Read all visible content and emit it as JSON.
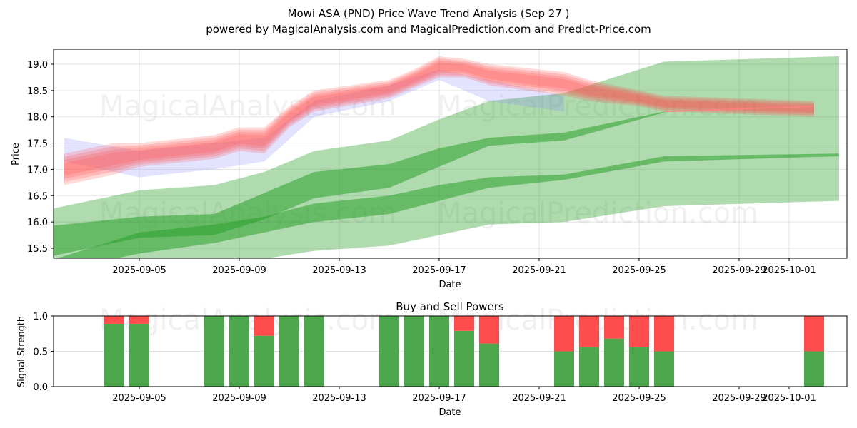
{
  "header": {
    "title": "Mowi ASA (PND) Price Wave Trend Analysis (Sep 27 )",
    "subtitle": "powered by MagicalAnalysis.com and MagicalPrediction.com and Predict-Price.com"
  },
  "watermarks": [
    "MagicalAnalysis.com",
    "MagicalPrediction.com"
  ],
  "colors": {
    "buy": "#4ca64c",
    "sell": "#ff4c4c",
    "band_green": "#2ca02c",
    "band_red": "#ff4d4d",
    "band_blue": "#8080ff"
  },
  "chart_data": [
    {
      "type": "area",
      "title": "",
      "xlabel": "Date",
      "ylabel": "Price",
      "ylim": [
        15.3,
        19.3
      ],
      "yticks": [
        "15.5",
        "16.0",
        "16.5",
        "17.0",
        "17.5",
        "18.0",
        "18.5",
        "19.0"
      ],
      "ytick_values": [
        15.5,
        16.0,
        16.5,
        17.0,
        17.5,
        18.0,
        18.5,
        19.0
      ],
      "xlim": [
        "2025-09-01",
        "2025-10-03"
      ],
      "xticks": [
        "2025-09-05",
        "2025-09-09",
        "2025-09-13",
        "2025-09-17",
        "2025-09-21",
        "2025-09-25",
        "2025-09-29",
        "2025-10-01"
      ],
      "grid": true,
      "red_band": {
        "x": [
          "2025-09-02",
          "2025-09-04",
          "2025-09-05",
          "2025-09-08",
          "2025-09-09",
          "2025-09-10",
          "2025-09-11",
          "2025-09-12",
          "2025-09-15",
          "2025-09-16",
          "2025-09-17",
          "2025-09-18",
          "2025-09-19",
          "2025-09-22",
          "2025-09-23",
          "2025-09-24",
          "2025-09-25",
          "2025-09-26",
          "2025-10-02"
        ],
        "upper": [
          17.3,
          17.5,
          17.5,
          17.65,
          17.8,
          17.8,
          18.2,
          18.5,
          18.7,
          18.9,
          19.15,
          19.1,
          19.0,
          18.85,
          18.7,
          18.6,
          18.5,
          18.4,
          18.3
        ],
        "lower": [
          16.7,
          16.9,
          17.05,
          17.2,
          17.35,
          17.3,
          17.8,
          18.1,
          18.35,
          18.55,
          18.75,
          18.75,
          18.6,
          18.4,
          18.3,
          18.25,
          18.2,
          18.1,
          18.0
        ]
      },
      "blue_band": {
        "x": [
          "2025-09-02",
          "2025-09-05",
          "2025-09-08",
          "2025-09-10",
          "2025-09-12",
          "2025-09-15",
          "2025-09-17",
          "2025-09-19",
          "2025-09-22"
        ],
        "upper": [
          17.6,
          17.35,
          17.5,
          17.6,
          18.3,
          18.6,
          18.9,
          18.7,
          18.4
        ],
        "lower": [
          17.15,
          16.85,
          17.0,
          17.15,
          18.0,
          18.3,
          18.7,
          18.3,
          18.1
        ]
      },
      "green_outer": {
        "x": [
          "2025-09-01",
          "2025-09-05",
          "2025-09-08",
          "2025-09-10",
          "2025-09-12",
          "2025-09-15",
          "2025-09-17",
          "2025-09-19",
          "2025-09-22",
          "2025-09-26",
          "2025-10-03"
        ],
        "upper": [
          16.2,
          16.6,
          16.7,
          16.95,
          17.35,
          17.55,
          17.95,
          18.3,
          18.45,
          19.05,
          19.15
        ],
        "lower": [
          15.2,
          15.1,
          15.2,
          15.3,
          15.45,
          15.55,
          15.75,
          15.95,
          16.0,
          16.3,
          16.4
        ]
      },
      "green_upper_inner": {
        "x": [
          "2025-09-01",
          "2025-09-05",
          "2025-09-08",
          "2025-09-10",
          "2025-09-12",
          "2025-09-15",
          "2025-09-17",
          "2025-09-19",
          "2025-09-22",
          "2025-09-26"
        ],
        "upper": [
          15.9,
          16.1,
          16.15,
          16.55,
          16.95,
          17.1,
          17.4,
          17.6,
          17.7,
          18.1
        ],
        "lower": [
          15.3,
          15.7,
          15.75,
          16.05,
          16.45,
          16.65,
          17.05,
          17.45,
          17.55,
          18.08
        ]
      },
      "green_lower_inner": {
        "x": [
          "2025-09-01",
          "2025-09-05",
          "2025-09-08",
          "2025-09-10",
          "2025-09-12",
          "2025-09-15",
          "2025-09-17",
          "2025-09-19",
          "2025-09-22",
          "2025-09-26",
          "2025-10-03"
        ],
        "upper": [
          15.2,
          15.8,
          15.95,
          16.1,
          16.35,
          16.5,
          16.7,
          16.85,
          16.9,
          17.25,
          17.3
        ],
        "lower": [
          15.0,
          15.4,
          15.6,
          15.8,
          16.0,
          16.15,
          16.4,
          16.65,
          16.8,
          17.15,
          17.25
        ]
      },
      "red_trend_line": {
        "x": [
          "2025-09-26",
          "2025-10-02"
        ],
        "y": [
          18.1,
          18.2
        ]
      }
    },
    {
      "type": "bar",
      "title": "Buy and Sell Powers",
      "xlabel": "Date",
      "ylabel": "Signal Strength",
      "ylim": [
        0,
        1
      ],
      "yticks": [
        "0.0",
        "0.5",
        "1.0"
      ],
      "ytick_values": [
        0,
        0.5,
        1.0
      ],
      "xticks": [
        "2025-09-05",
        "2025-09-09",
        "2025-09-13",
        "2025-09-17",
        "2025-09-21",
        "2025-09-25",
        "2025-09-29",
        "2025-10-01"
      ],
      "grid": true,
      "categories": [
        "2025-09-04",
        "2025-09-05",
        "2025-09-08",
        "2025-09-09",
        "2025-09-10",
        "2025-09-11",
        "2025-09-12",
        "2025-09-15",
        "2025-09-16",
        "2025-09-17",
        "2025-09-18",
        "2025-09-19",
        "2025-09-22",
        "2025-09-23",
        "2025-09-24",
        "2025-09-25",
        "2025-09-26",
        "2025-10-02"
      ],
      "series": [
        {
          "name": "Buy",
          "values": [
            0.89,
            0.89,
            1.0,
            1.0,
            0.72,
            1.0,
            1.0,
            1.0,
            1.0,
            1.0,
            0.79,
            0.61,
            0.5,
            0.56,
            0.68,
            0.56,
            0.5,
            0.5
          ]
        },
        {
          "name": "Sell",
          "values": [
            0.11,
            0.11,
            0.0,
            0.0,
            0.28,
            0.0,
            0.0,
            0.0,
            0.0,
            0.0,
            0.21,
            0.39,
            0.5,
            0.44,
            0.32,
            0.44,
            0.5,
            0.5
          ]
        }
      ]
    }
  ]
}
